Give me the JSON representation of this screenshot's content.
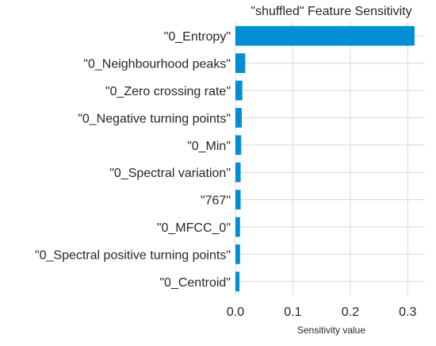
{
  "chart_data": {
    "type": "bar",
    "orientation": "horizontal",
    "title": "\"shuffled\" Feature Sensitivity",
    "xlabel": "Sensitivity value",
    "ylabel": "",
    "categories": [
      "\"0_Entropy\"",
      "\"0_Neighbourhood peaks\"",
      "\"0_Zero crossing rate\"",
      "\"0_Negative turning points\"",
      "\"0_Min\"",
      "\"0_Spectral variation\"",
      "\"767\"",
      "\"0_MFCC_0\"",
      "\"0_Spectral positive turning points\"",
      "\"0_Centroid\""
    ],
    "values": [
      0.312,
      0.017,
      0.012,
      0.011,
      0.01,
      0.009,
      0.009,
      0.008,
      0.008,
      0.007
    ],
    "xlim": [
      0,
      0.33
    ],
    "xticks": [
      0.0,
      0.1,
      0.2,
      0.3
    ],
    "xtick_labels": [
      "0.0",
      "0.1",
      "0.2",
      "0.3"
    ],
    "grid": true,
    "bar_color": "#008fd5"
  }
}
